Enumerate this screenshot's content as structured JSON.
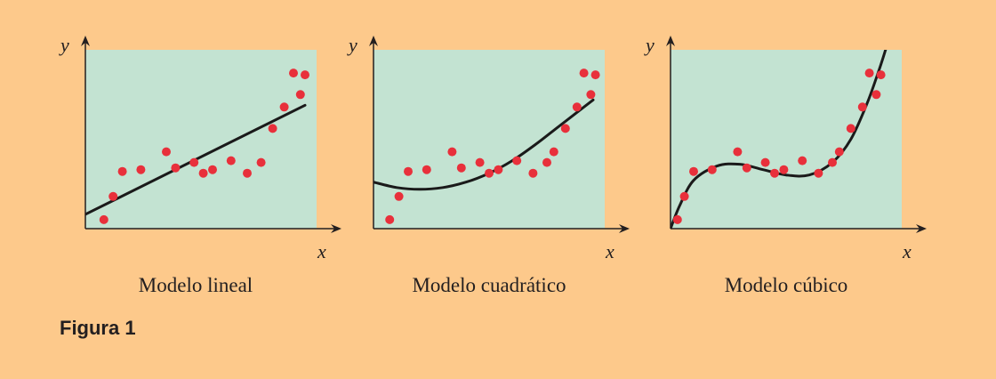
{
  "figure_label": "Figura 1",
  "colors": {
    "background": "#fdc98b",
    "plot_area": "#c3e3d2",
    "points": "#e8303b",
    "curve": "#1a1a1a",
    "axis": "#231f20"
  },
  "chart_data": [
    {
      "type": "scatter",
      "title": "Modelo lineal",
      "xlabel": "x",
      "ylabel": "y",
      "xlim": [
        0,
        10
      ],
      "ylim": [
        0,
        10
      ],
      "grid": false,
      "fit": "linear",
      "points": [
        {
          "x": 0.8,
          "y": 0.5
        },
        {
          "x": 1.2,
          "y": 1.8
        },
        {
          "x": 1.6,
          "y": 3.2
        },
        {
          "x": 2.4,
          "y": 3.3
        },
        {
          "x": 3.5,
          "y": 4.3
        },
        {
          "x": 3.9,
          "y": 3.4
        },
        {
          "x": 4.7,
          "y": 3.7
        },
        {
          "x": 5.1,
          "y": 3.1
        },
        {
          "x": 5.5,
          "y": 3.3
        },
        {
          "x": 6.3,
          "y": 3.8
        },
        {
          "x": 7.0,
          "y": 3.1
        },
        {
          "x": 7.6,
          "y": 3.7
        },
        {
          "x": 8.1,
          "y": 5.6
        },
        {
          "x": 8.6,
          "y": 6.8
        },
        {
          "x": 9.3,
          "y": 7.5
        },
        {
          "x": 9.0,
          "y": 8.7
        },
        {
          "x": 9.5,
          "y": 8.6
        }
      ],
      "curve": [
        {
          "x": 0,
          "y": 0.8
        },
        {
          "x": 9.5,
          "y": 6.9
        }
      ]
    },
    {
      "type": "scatter",
      "title": "Modelo cuadrático",
      "xlabel": "x",
      "ylabel": "y",
      "xlim": [
        0,
        10
      ],
      "ylim": [
        0,
        10
      ],
      "grid": false,
      "fit": "quadratic",
      "points": [
        {
          "x": 0.7,
          "y": 0.5
        },
        {
          "x": 1.1,
          "y": 1.8
        },
        {
          "x": 1.5,
          "y": 3.2
        },
        {
          "x": 2.3,
          "y": 3.3
        },
        {
          "x": 3.4,
          "y": 4.3
        },
        {
          "x": 3.8,
          "y": 3.4
        },
        {
          "x": 4.6,
          "y": 3.7
        },
        {
          "x": 5.0,
          "y": 3.1
        },
        {
          "x": 5.4,
          "y": 3.3
        },
        {
          "x": 6.2,
          "y": 3.8
        },
        {
          "x": 6.9,
          "y": 3.1
        },
        {
          "x": 7.5,
          "y": 3.7
        },
        {
          "x": 7.8,
          "y": 4.3
        },
        {
          "x": 8.3,
          "y": 5.6
        },
        {
          "x": 8.8,
          "y": 6.8
        },
        {
          "x": 9.4,
          "y": 7.5
        },
        {
          "x": 9.1,
          "y": 8.7
        },
        {
          "x": 9.6,
          "y": 8.6
        }
      ],
      "curve": [
        {
          "x": 0,
          "y": 2.6
        },
        {
          "x": 1.0,
          "y": 2.3
        },
        {
          "x": 2.0,
          "y": 2.2
        },
        {
          "x": 3.0,
          "y": 2.3
        },
        {
          "x": 4.0,
          "y": 2.6
        },
        {
          "x": 5.0,
          "y": 3.1
        },
        {
          "x": 6.0,
          "y": 3.8
        },
        {
          "x": 7.0,
          "y": 4.7
        },
        {
          "x": 8.0,
          "y": 5.7
        },
        {
          "x": 9.0,
          "y": 6.7
        },
        {
          "x": 9.5,
          "y": 7.2
        }
      ]
    },
    {
      "type": "scatter",
      "title": "Modelo cúbico",
      "xlabel": "x",
      "ylabel": "y",
      "xlim": [
        0,
        10
      ],
      "ylim": [
        0,
        10
      ],
      "grid": false,
      "fit": "cubic",
      "points": [
        {
          "x": 0.3,
          "y": 0.5
        },
        {
          "x": 0.6,
          "y": 1.8
        },
        {
          "x": 1.0,
          "y": 3.2
        },
        {
          "x": 1.8,
          "y": 3.3
        },
        {
          "x": 2.9,
          "y": 4.3
        },
        {
          "x": 3.3,
          "y": 3.4
        },
        {
          "x": 4.1,
          "y": 3.7
        },
        {
          "x": 4.5,
          "y": 3.1
        },
        {
          "x": 4.9,
          "y": 3.3
        },
        {
          "x": 5.7,
          "y": 3.8
        },
        {
          "x": 6.4,
          "y": 3.1
        },
        {
          "x": 7.0,
          "y": 3.7
        },
        {
          "x": 7.3,
          "y": 4.3
        },
        {
          "x": 7.8,
          "y": 5.6
        },
        {
          "x": 8.3,
          "y": 6.8
        },
        {
          "x": 8.9,
          "y": 7.5
        },
        {
          "x": 8.6,
          "y": 8.7
        },
        {
          "x": 9.1,
          "y": 8.6
        }
      ],
      "curve": [
        {
          "x": 0,
          "y": 0
        },
        {
          "x": 0.4,
          "y": 1.3
        },
        {
          "x": 1.0,
          "y": 2.7
        },
        {
          "x": 2.0,
          "y": 3.5
        },
        {
          "x": 3.0,
          "y": 3.6
        },
        {
          "x": 4.0,
          "y": 3.3
        },
        {
          "x": 5.0,
          "y": 3.0
        },
        {
          "x": 6.0,
          "y": 3.0
        },
        {
          "x": 7.0,
          "y": 3.7
        },
        {
          "x": 7.8,
          "y": 5.0
        },
        {
          "x": 8.5,
          "y": 7.0
        },
        {
          "x": 9.0,
          "y": 8.8
        },
        {
          "x": 9.3,
          "y": 10.0
        }
      ]
    }
  ]
}
